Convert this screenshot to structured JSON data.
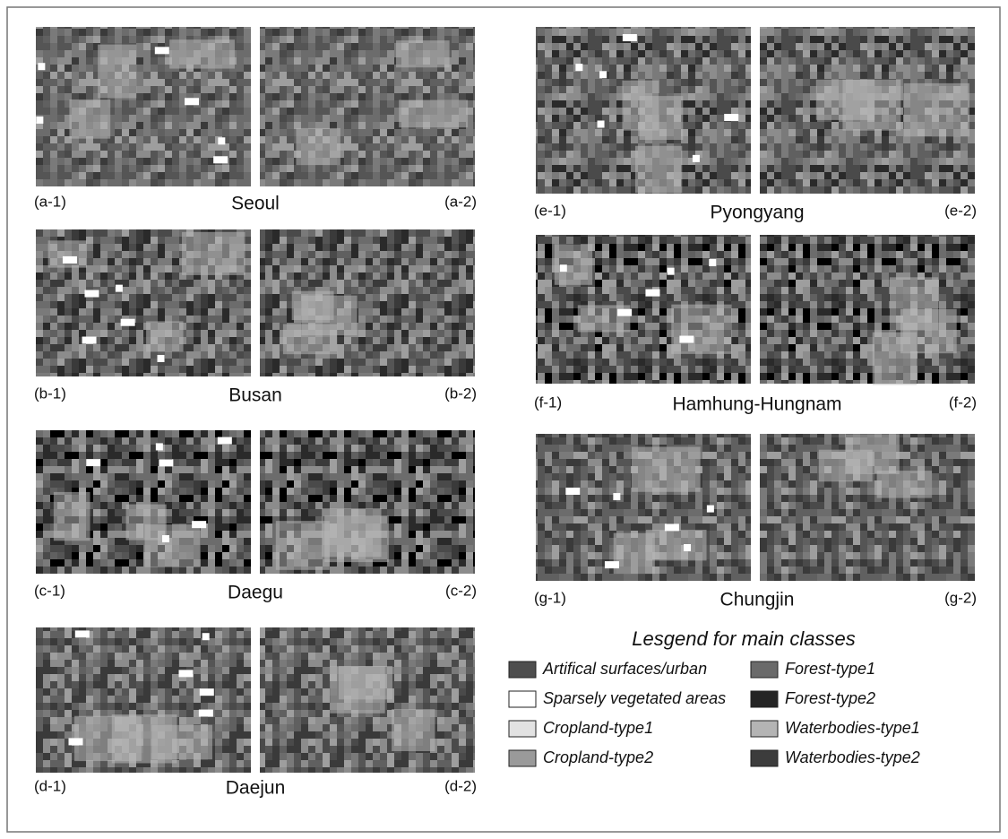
{
  "panels": [
    {
      "left": "(a-1)",
      "city": "Seoul",
      "right": "(a-2)"
    },
    {
      "left": "(b-1)",
      "city": "Busan",
      "right": "(b-2)"
    },
    {
      "left": "(c-1)",
      "city": "Daegu",
      "right": "(c-2)"
    },
    {
      "left": "(d-1)",
      "city": "Daejun",
      "right": "(d-2)"
    },
    {
      "left": "(e-1)",
      "city": "Pyongyang",
      "right": "(e-2)"
    },
    {
      "left": "(f-1)",
      "city": "Hamhung-Hungnam",
      "right": "(f-2)"
    },
    {
      "left": "(g-1)",
      "city": "Chungjin",
      "right": "(g-2)"
    }
  ],
  "legend": {
    "title": "Lesgend for main classes",
    "items": [
      {
        "label": "Artifical surfaces/urban",
        "color": "#4e4e4e"
      },
      {
        "label": "Sparsely vegetated areas",
        "color": "#ffffff"
      },
      {
        "label": "Cropland-type1",
        "color": "#e2e2e2"
      },
      {
        "label": "Cropland-type2",
        "color": "#9a9a9a"
      },
      {
        "label": "Forest-type1",
        "color": "#6a6a6a"
      },
      {
        "label": "Forest-type2",
        "color": "#242424"
      },
      {
        "label": "Waterbodies-type1",
        "color": "#b4b4b4"
      },
      {
        "label": "Waterbodies-type2",
        "color": "#3c3c3c"
      }
    ]
  }
}
